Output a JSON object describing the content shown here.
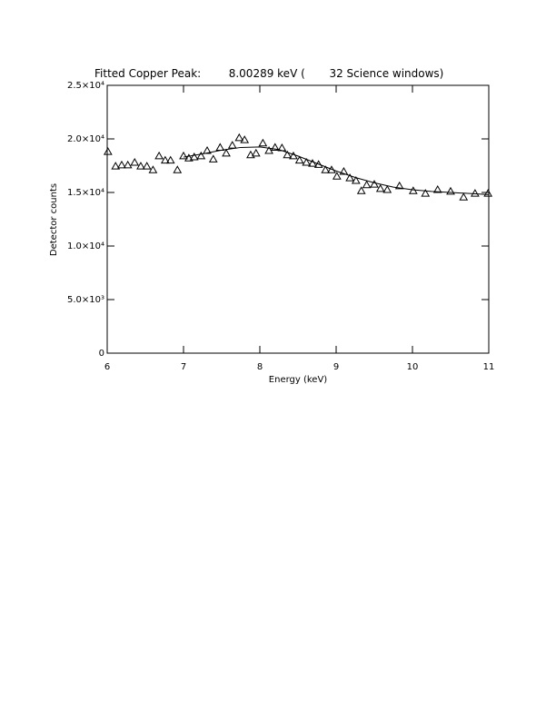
{
  "chart_data": {
    "type": "scatter",
    "title": "Fitted Copper Peak:        8.00289 keV (       32 Science windows)",
    "x_label": "Energy (keV)",
    "y_label": "Detector counts",
    "xlim": [
      6,
      11
    ],
    "ylim": [
      0,
      25000
    ],
    "xticks": [
      6,
      7,
      8,
      9,
      10,
      11
    ],
    "yticks": [
      0,
      {
        "value": 5000,
        "label": "5.0×10³"
      },
      {
        "value": 10000,
        "label": "1.0×10⁴"
      },
      {
        "value": 15000,
        "label": "1.5×10⁴"
      },
      {
        "value": 20000,
        "label": "2.0×10⁴"
      },
      {
        "value": 25000,
        "label": "2.5×10⁴"
      }
    ],
    "series": [
      {
        "type": "scatter",
        "marker": "triangle",
        "color": "#000000",
        "x": [
          6.01,
          6.11,
          6.19,
          6.27,
          6.36,
          6.44,
          6.52,
          6.6,
          6.68,
          6.76,
          6.83,
          6.92,
          7.0,
          7.07,
          7.14,
          7.23,
          7.31,
          7.39,
          7.48,
          7.56,
          7.64,
          7.73,
          7.8,
          7.88,
          7.95,
          8.04,
          8.12,
          8.2,
          8.29,
          8.36,
          8.44,
          8.52,
          8.61,
          8.69,
          8.77,
          8.86,
          8.94,
          9.01,
          9.1,
          9.18,
          9.26,
          9.33,
          9.4,
          9.5,
          9.58,
          9.67,
          9.83,
          10.01,
          10.17,
          10.33,
          10.5,
          10.67,
          10.82,
          10.99
        ],
        "values": [
          18800,
          17450,
          17550,
          17550,
          17800,
          17450,
          17450,
          17100,
          18400,
          18000,
          18000,
          17100,
          18400,
          18200,
          18300,
          18400,
          18900,
          18100,
          19200,
          18650,
          19400,
          20100,
          19900,
          18500,
          18650,
          19600,
          18900,
          19200,
          19150,
          18500,
          18400,
          18000,
          17800,
          17700,
          17600,
          17100,
          17100,
          16500,
          16950,
          16350,
          16100,
          15150,
          15700,
          15750,
          15350,
          15250,
          15600,
          15150,
          14900,
          15250,
          15100,
          14550,
          14900,
          14900
        ]
      },
      {
        "type": "line",
        "color": "#000000",
        "x": [
          7.0,
          7.25,
          7.5,
          7.75,
          8.0,
          8.25,
          8.5,
          8.75,
          9.0,
          9.25,
          9.5,
          9.75,
          10.0,
          10.25,
          10.5,
          10.75,
          11.0
        ],
        "values": [
          18300,
          18600,
          18950,
          19200,
          19250,
          19000,
          18400,
          17700,
          17000,
          16400,
          15900,
          15500,
          15250,
          15100,
          15000,
          14900,
          14800
        ]
      }
    ]
  }
}
